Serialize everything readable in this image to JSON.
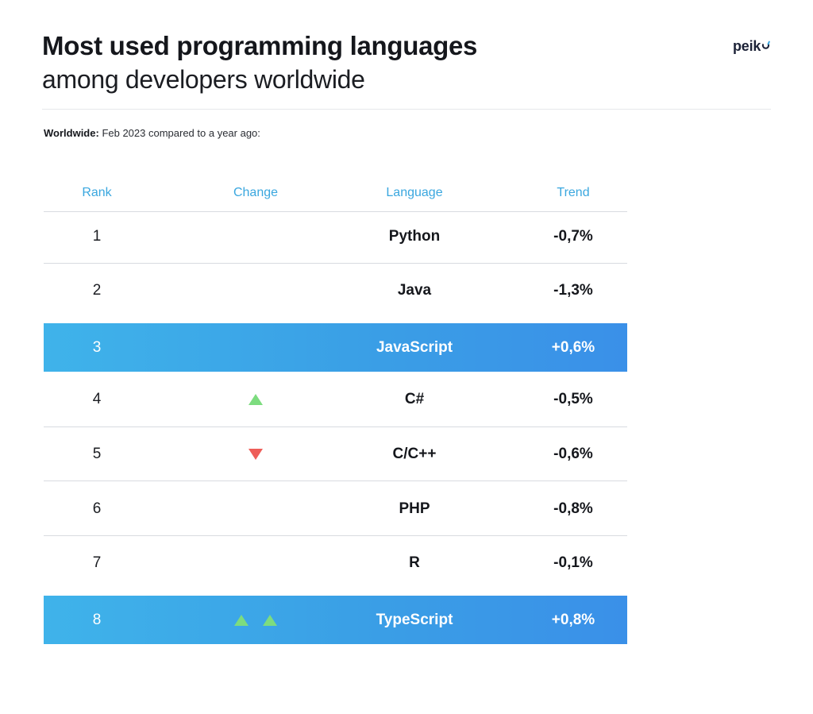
{
  "header": {
    "title": "Most used programming languages",
    "subtitle": "among developers worldwide",
    "logo_text": "peik"
  },
  "note": {
    "label": "Worldwide:",
    "text": "Feb 2023 compared to a year ago:"
  },
  "chart_data": {
    "type": "table",
    "columns": [
      "Rank",
      "Change",
      "Language",
      "Trend"
    ],
    "rows": [
      {
        "rank": "1",
        "change": [],
        "language": "Python",
        "trend": "-0,7%",
        "highlight": false
      },
      {
        "rank": "2",
        "change": [],
        "language": "Java",
        "trend": "-1,3%",
        "highlight": false
      },
      {
        "rank": "3",
        "change": [],
        "language": "JavaScript",
        "trend": "+0,6%",
        "highlight": true
      },
      {
        "rank": "4",
        "change": [
          "up"
        ],
        "language": "C#",
        "trend": "-0,5%",
        "highlight": false
      },
      {
        "rank": "5",
        "change": [
          "down"
        ],
        "language": "C/C++",
        "trend": "-0,6%",
        "highlight": false
      },
      {
        "rank": "6",
        "change": [],
        "language": "PHP",
        "trend": "-0,8%",
        "highlight": false
      },
      {
        "rank": "7",
        "change": [],
        "language": "R",
        "trend": "-0,1%",
        "highlight": false
      },
      {
        "rank": "8",
        "change": [
          "up",
          "up"
        ],
        "language": "TypeScript",
        "trend": "+0,8%",
        "highlight": true
      }
    ],
    "colors": {
      "header_text": "#3aa7df",
      "highlight": "#3a9fe6",
      "up": "#7ddc7f",
      "down": "#ee5d58"
    }
  }
}
